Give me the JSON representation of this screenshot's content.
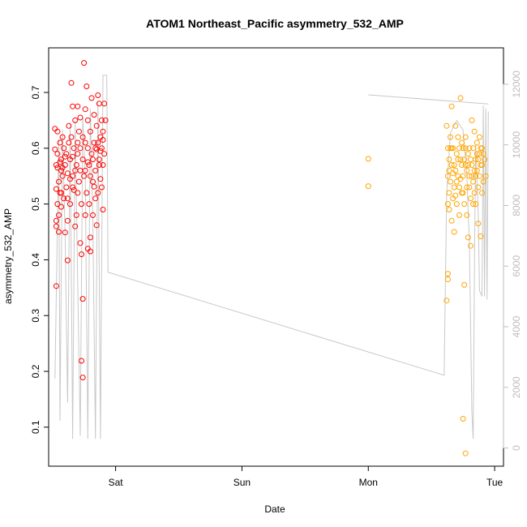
{
  "chart_data": {
    "type": "scatter",
    "title": "ATOM1 Northeast_Pacific asymmetry_532_AMP",
    "xlabel": "Date",
    "ylabel": "asymmetry_532_AMP",
    "x_ticks": [
      {
        "label": "Sat",
        "day": 1
      },
      {
        "label": "Sun",
        "day": 2
      },
      {
        "label": "Mon",
        "day": 3
      },
      {
        "label": "Tue",
        "day": 4
      }
    ],
    "xlim_days": [
      0.47,
      4.07
    ],
    "ylim": [
      0.03,
      0.78
    ],
    "y_ticks": [
      0.1,
      0.2,
      0.3,
      0.4,
      0.5,
      0.6,
      0.7
    ],
    "y_tick_labels": [
      "0.1",
      "0.2",
      "0.3",
      "0.4",
      "0.5",
      "0.6",
      "0.7"
    ],
    "y2_ticks": [
      0,
      2000,
      4000,
      6000,
      8000,
      10000,
      12000
    ],
    "y2_tick_labels": [
      "0",
      "2000",
      "4000",
      "6000",
      "8000",
      "10000",
      "12000"
    ],
    "y2lim": [
      -600,
      13200
    ],
    "series": [
      {
        "type": "scatter",
        "color": "#ff0000",
        "points": [
          [
            0.52,
            0.635
          ],
          [
            0.52,
            0.598
          ],
          [
            0.53,
            0.57
          ],
          [
            0.53,
            0.527
          ],
          [
            0.53,
            0.47
          ],
          [
            0.53,
            0.46
          ],
          [
            0.53,
            0.353
          ],
          [
            0.54,
            0.63
          ],
          [
            0.54,
            0.59
          ],
          [
            0.54,
            0.565
          ],
          [
            0.55,
            0.54
          ],
          [
            0.55,
            0.48
          ],
          [
            0.55,
            0.45
          ],
          [
            0.56,
            0.61
          ],
          [
            0.56,
            0.575
          ],
          [
            0.57,
            0.52
          ],
          [
            0.57,
            0.495
          ],
          [
            0.57,
            0.58
          ],
          [
            0.58,
            0.62
          ],
          [
            0.58,
            0.55
          ],
          [
            0.59,
            0.51
          ],
          [
            0.59,
            0.6
          ],
          [
            0.6,
            0.57
          ],
          [
            0.6,
            0.449
          ],
          [
            0.61,
            0.53
          ],
          [
            0.61,
            0.59
          ],
          [
            0.62,
            0.47
          ],
          [
            0.62,
            0.555
          ],
          [
            0.62,
            0.399
          ],
          [
            0.63,
            0.61
          ],
          [
            0.63,
            0.64
          ],
          [
            0.64,
            0.58
          ],
          [
            0.64,
            0.5
          ],
          [
            0.65,
            0.717
          ],
          [
            0.65,
            0.62
          ],
          [
            0.66,
            0.53
          ],
          [
            0.66,
            0.675
          ],
          [
            0.66,
            0.55
          ],
          [
            0.67,
            0.6
          ],
          [
            0.67,
            0.525
          ],
          [
            0.68,
            0.46
          ],
          [
            0.68,
            0.65
          ],
          [
            0.69,
            0.57
          ],
          [
            0.69,
            0.48
          ],
          [
            0.7,
            0.59
          ],
          [
            0.7,
            0.675
          ],
          [
            0.71,
            0.63
          ],
          [
            0.71,
            0.54
          ],
          [
            0.72,
            0.655
          ],
          [
            0.72,
            0.6
          ],
          [
            0.72,
            0.43
          ],
          [
            0.73,
            0.219
          ],
          [
            0.73,
            0.41
          ],
          [
            0.73,
            0.5
          ],
          [
            0.74,
            0.189
          ],
          [
            0.74,
            0.62
          ],
          [
            0.74,
            0.58
          ],
          [
            0.74,
            0.33
          ],
          [
            0.75,
            0.753
          ],
          [
            0.75,
            0.55
          ],
          [
            0.76,
            0.48
          ],
          [
            0.76,
            0.67
          ],
          [
            0.76,
            0.61
          ],
          [
            0.77,
            0.711
          ],
          [
            0.77,
            0.52
          ],
          [
            0.78,
            0.42
          ],
          [
            0.78,
            0.6
          ],
          [
            0.78,
            0.65
          ],
          [
            0.79,
            0.57
          ],
          [
            0.79,
            0.5
          ],
          [
            0.8,
            0.63
          ],
          [
            0.8,
            0.44
          ],
          [
            0.8,
            0.415
          ],
          [
            0.81,
            0.69
          ],
          [
            0.81,
            0.59
          ],
          [
            0.82,
            0.54
          ],
          [
            0.82,
            0.48
          ],
          [
            0.83,
            0.61
          ],
          [
            0.83,
            0.66
          ],
          [
            0.84,
            0.56
          ],
          [
            0.84,
            0.51
          ],
          [
            0.85,
            0.64
          ],
          [
            0.85,
            0.598
          ],
          [
            0.86,
            0.695
          ],
          [
            0.86,
            0.52
          ],
          [
            0.87,
            0.58
          ],
          [
            0.87,
            0.68
          ],
          [
            0.88,
            0.62
          ],
          [
            0.88,
            0.545
          ],
          [
            0.89,
            0.6
          ],
          [
            0.89,
            0.65
          ],
          [
            0.9,
            0.57
          ],
          [
            0.9,
            0.49
          ],
          [
            0.9,
            0.615
          ],
          [
            0.91,
            0.68
          ],
          [
            0.91,
            0.59
          ],
          [
            0.92,
            0.65
          ],
          [
            0.58,
            0.565
          ],
          [
            0.6,
            0.585
          ],
          [
            0.62,
            0.51
          ],
          [
            0.64,
            0.545
          ],
          [
            0.66,
            0.585
          ],
          [
            0.7,
            0.52
          ],
          [
            0.72,
            0.56
          ],
          [
            0.76,
            0.56
          ],
          [
            0.78,
            0.575
          ],
          [
            0.8,
            0.55
          ],
          [
            0.84,
            0.6
          ],
          [
            0.86,
            0.61
          ],
          [
            0.88,
            0.595
          ],
          [
            0.54,
            0.5
          ],
          [
            0.56,
            0.52
          ],
          [
            0.68,
            0.56
          ],
          [
            0.7,
            0.61
          ],
          [
            0.82,
            0.58
          ],
          [
            0.85,
            0.462
          ],
          [
            0.83,
            0.531
          ],
          [
            0.87,
            0.57
          ],
          [
            0.89,
            0.53
          ],
          [
            0.9,
            0.63
          ],
          [
            0.57,
            0.56
          ]
        ]
      },
      {
        "type": "scatter",
        "color": "#ffa500",
        "points": [
          [
            3.0,
            0.581
          ],
          [
            3.0,
            0.532
          ],
          [
            3.62,
            0.327
          ],
          [
            3.62,
            0.64
          ],
          [
            3.63,
            0.55
          ],
          [
            3.63,
            0.365
          ],
          [
            3.63,
            0.375
          ],
          [
            3.63,
            0.6
          ],
          [
            3.64,
            0.52
          ],
          [
            3.64,
            0.58
          ],
          [
            3.64,
            0.49
          ],
          [
            3.65,
            0.62
          ],
          [
            3.65,
            0.54
          ],
          [
            3.66,
            0.47
          ],
          [
            3.66,
            0.675
          ],
          [
            3.66,
            0.57
          ],
          [
            3.67,
            0.51
          ],
          [
            3.67,
            0.6
          ],
          [
            3.68,
            0.53
          ],
          [
            3.68,
            0.45
          ],
          [
            3.69,
            0.64
          ],
          [
            3.69,
            0.56
          ],
          [
            3.7,
            0.5
          ],
          [
            3.7,
            0.59
          ],
          [
            3.71,
            0.55
          ],
          [
            3.71,
            0.62
          ],
          [
            3.72,
            0.48
          ],
          [
            3.72,
            0.53
          ],
          [
            3.73,
            0.69
          ],
          [
            3.73,
            0.58
          ],
          [
            3.74,
            0.61
          ],
          [
            3.74,
            0.52
          ],
          [
            3.75,
            0.55
          ],
          [
            3.75,
            0.115
          ],
          [
            3.75,
            0.6
          ],
          [
            3.76,
            0.5
          ],
          [
            3.76,
            0.355
          ],
          [
            3.77,
            0.57
          ],
          [
            3.77,
            0.053
          ],
          [
            3.77,
            0.62
          ],
          [
            3.78,
            0.53
          ],
          [
            3.78,
            0.48
          ],
          [
            3.79,
            0.59
          ],
          [
            3.79,
            0.44
          ],
          [
            3.8,
            0.55
          ],
          [
            3.8,
            0.6
          ],
          [
            3.81,
            0.51
          ],
          [
            3.81,
            0.425
          ],
          [
            3.82,
            0.65
          ],
          [
            3.82,
            0.57
          ],
          [
            3.83,
            0.54
          ],
          [
            3.83,
            0.6
          ],
          [
            3.84,
            0.52
          ],
          [
            3.84,
            0.63
          ],
          [
            3.85,
            0.58
          ],
          [
            3.85,
            0.5
          ],
          [
            3.86,
            0.56
          ],
          [
            3.86,
            0.61
          ],
          [
            3.87,
            0.53
          ],
          [
            3.87,
            0.465
          ],
          [
            3.88,
            0.59
          ],
          [
            3.88,
            0.55
          ],
          [
            3.89,
            0.442
          ],
          [
            3.89,
            0.6
          ],
          [
            3.9,
            0.57
          ],
          [
            3.9,
            0.52
          ],
          [
            3.91,
            0.59
          ],
          [
            3.92,
            0.58
          ],
          [
            3.93,
            0.55
          ],
          [
            3.64,
            0.56
          ],
          [
            3.66,
            0.6
          ],
          [
            3.68,
            0.57
          ],
          [
            3.7,
            0.54
          ],
          [
            3.72,
            0.6
          ],
          [
            3.74,
            0.57
          ],
          [
            3.76,
            0.58
          ],
          [
            3.78,
            0.56
          ],
          [
            3.8,
            0.53
          ],
          [
            3.82,
            0.55
          ],
          [
            3.84,
            0.56
          ],
          [
            3.86,
            0.59
          ],
          [
            3.88,
            0.62
          ],
          [
            3.9,
            0.6
          ],
          [
            3.63,
            0.5
          ],
          [
            3.67,
            0.555
          ],
          [
            3.71,
            0.58
          ],
          [
            3.75,
            0.52
          ],
          [
            3.79,
            0.57
          ],
          [
            3.83,
            0.5
          ],
          [
            3.87,
            0.58
          ],
          [
            3.91,
            0.54
          ],
          [
            3.65,
            0.6
          ],
          [
            3.69,
            0.515
          ],
          [
            3.73,
            0.545
          ],
          [
            3.77,
            0.6
          ],
          [
            3.81,
            0.58
          ],
          [
            3.85,
            0.55
          ],
          [
            3.89,
            0.57
          ]
        ]
      },
      {
        "type": "line",
        "axis": "right",
        "color": "#c8c8c8",
        "points": [
          [
            0.52,
            2300
          ],
          [
            0.55,
            10200
          ],
          [
            0.56,
            900
          ],
          [
            0.58,
            10500
          ],
          [
            0.6,
            7000
          ],
          [
            0.62,
            1500
          ],
          [
            0.64,
            10700
          ],
          [
            0.66,
            300
          ],
          [
            0.68,
            10800
          ],
          [
            0.7,
            5500
          ],
          [
            0.72,
            400
          ],
          [
            0.74,
            10900
          ],
          [
            0.76,
            9000
          ],
          [
            0.78,
            300
          ],
          [
            0.8,
            11200
          ],
          [
            0.82,
            7500
          ],
          [
            0.84,
            300
          ],
          [
            0.86,
            11400
          ],
          [
            0.88,
            300
          ],
          [
            0.9,
            12300
          ],
          [
            0.93,
            12300
          ],
          [
            0.94,
            5800
          ],
          [
            3.6,
            2400
          ],
          [
            3.62,
            8400
          ],
          [
            3.65,
            10400
          ],
          [
            3.7,
            10800
          ],
          [
            3.75,
            10500
          ],
          [
            3.78,
            9000
          ],
          [
            3.8,
            6800
          ],
          [
            3.82,
            1200
          ],
          [
            3.83,
            300
          ],
          [
            3.84,
            6000
          ],
          [
            3.85,
            10000
          ],
          [
            3.87,
            7800
          ],
          [
            3.88,
            5200
          ],
          [
            3.9,
            5000
          ],
          [
            3.91,
            11300
          ],
          [
            3.92,
            5000
          ],
          [
            3.93,
            11200
          ],
          [
            3.94,
            4900
          ],
          [
            3.95,
            11100
          ],
          [
            3.95,
            11100
          ],
          [
            3.95,
            11100
          ]
        ],
        "segment_points": [
          [
            3.0,
            11650
          ],
          [
            3.95,
            11350
          ]
        ]
      }
    ]
  }
}
